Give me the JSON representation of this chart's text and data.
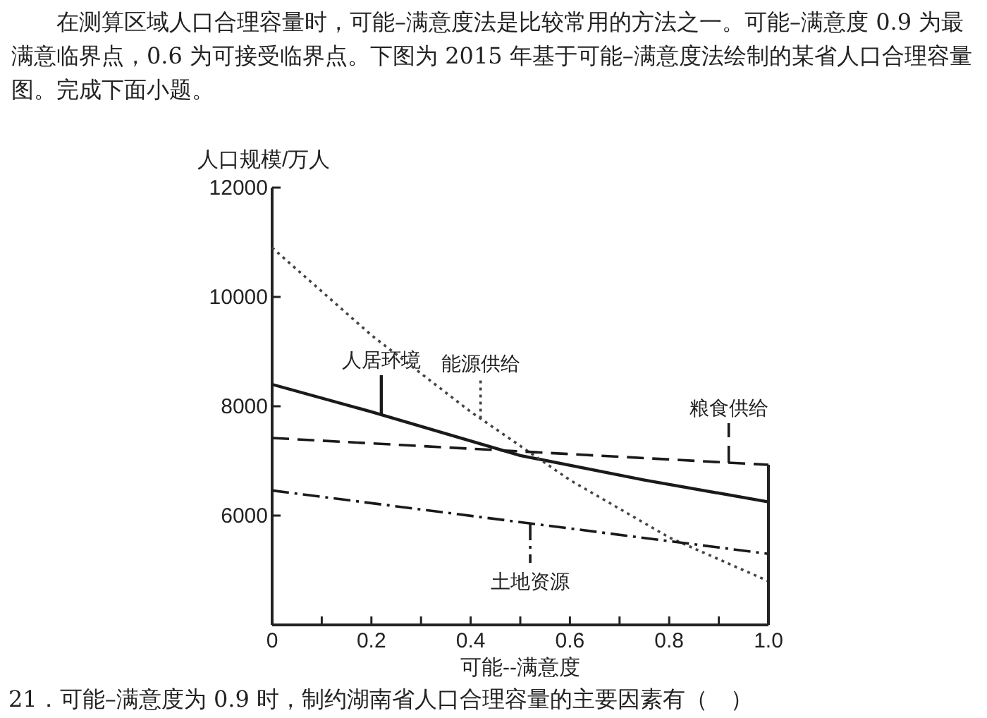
{
  "chart_data": {
    "type": "line",
    "title": "在测算区域人口合理容量时，可能–满意度法是比较常用的方法之一。可能–满意度 0.9 为最满意临界点，0.6 为可接受临界点。下图为 2015 年基于可能–满意度法绘制的某省人口合理容量图。完成下面小题。",
    "xlabel": "可能--满意度",
    "ylabel": "人口规模/万人",
    "annotations": [
      "21．可能–满意度为 0.9 时，制约湖南省人口合理容量的主要因素有（　）"
    ],
    "xlim": [
      0,
      1
    ],
    "ylim": [
      4000,
      12000
    ],
    "xticks": [
      0,
      {
        "value": 0.1,
        "label": null
      },
      0.2,
      {
        "value": 0.3,
        "label": null
      },
      0.4,
      {
        "value": 0.5,
        "label": null
      },
      0.6,
      {
        "value": 0.7,
        "label": null
      },
      0.8,
      {
        "value": 0.9,
        "label": null
      },
      {
        "value": 1,
        "label": "1.0"
      }
    ],
    "yticks": [
      6000,
      8000,
      10000,
      12000
    ],
    "series": [
      {
        "name": "人居环境",
        "color": "#1a1a1a",
        "line_style": "solid",
        "x": [
          0,
          0.2,
          0.5,
          0.75,
          1
        ],
        "values": [
          8400,
          7900,
          7100,
          6650,
          6250
        ]
      },
      {
        "name": "能源供给",
        "color": "#444444",
        "line_style": "dotted",
        "x": [
          0,
          0.2,
          0.4,
          0.6,
          0.8,
          1
        ],
        "values": [
          10900,
          9300,
          7900,
          6650,
          5600,
          4800
        ]
      },
      {
        "name": "粮食供给",
        "color": "#1a1a1a",
        "line_style": "dashed",
        "x": [
          0,
          1
        ],
        "values": [
          7420,
          6930
        ]
      },
      {
        "name": "土地资源",
        "color": "#1a1a1a",
        "line_style": "dashdot",
        "x": [
          0,
          1
        ],
        "values": [
          6460,
          5300
        ]
      }
    ]
  }
}
